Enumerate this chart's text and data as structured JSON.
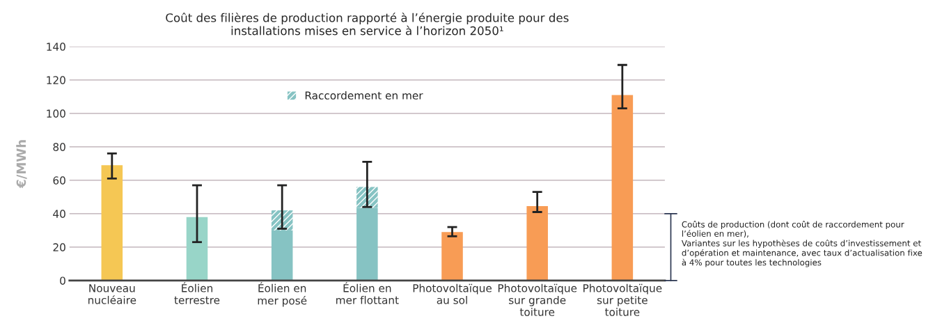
{
  "chart_data": {
    "type": "bar",
    "title": "Coût des filières de production rapporté à l’énergie produite pour des\ninstallations mises en service à l’horizon 2050¹",
    "ylabel": "€/MWh",
    "categories": [
      "Nouveau\nnucléaire",
      "Éolien\nterrestre",
      "Éolien en\nmer posé",
      "Éolien en\nmer flottant",
      "Photovoltaïque\nau sol",
      "Photovoltaïque\nsur grande\ntoiture",
      "Photovoltaïque\nsur petite\ntoiture"
    ],
    "stacked": true,
    "series": [
      {
        "colors": [
          "#f5c754",
          "#98d5c8",
          "#86c3c3",
          "#86c3c3",
          "#f89c55",
          "#f89c55",
          "#f89c55"
        ],
        "values": [
          69,
          38,
          30,
          43.5,
          29,
          44.5,
          111
        ],
        "errors": [
          [
            61,
            76
          ],
          [
            23,
            57
          ],
          null,
          null,
          [
            26.5,
            32
          ],
          [
            41,
            53
          ],
          [
            103,
            129
          ]
        ]
      },
      {
        "name": "Raccordement en mer",
        "color": "#86c3c3",
        "values": [
          0,
          0,
          12,
          12.5,
          0,
          0,
          0
        ],
        "errors": [
          null,
          null,
          [
            31,
            57
          ],
          [
            44,
            71
          ],
          null,
          null,
          null
        ]
      }
    ],
    "ylim": [
      0,
      140
    ],
    "yticks": [
      0,
      20,
      40,
      60,
      80,
      100,
      120,
      140
    ],
    "grid": "y",
    "legend": "top",
    "annotations": [
      "Coûts de production (dont coût de raccordement pour l’éolien en mer),\nVariantes sur les hypothèses de coûts d’investissement et d’opération et maintenance, avec taux d’actualisation fixe  à 4% pour toutes les technologies"
    ]
  }
}
